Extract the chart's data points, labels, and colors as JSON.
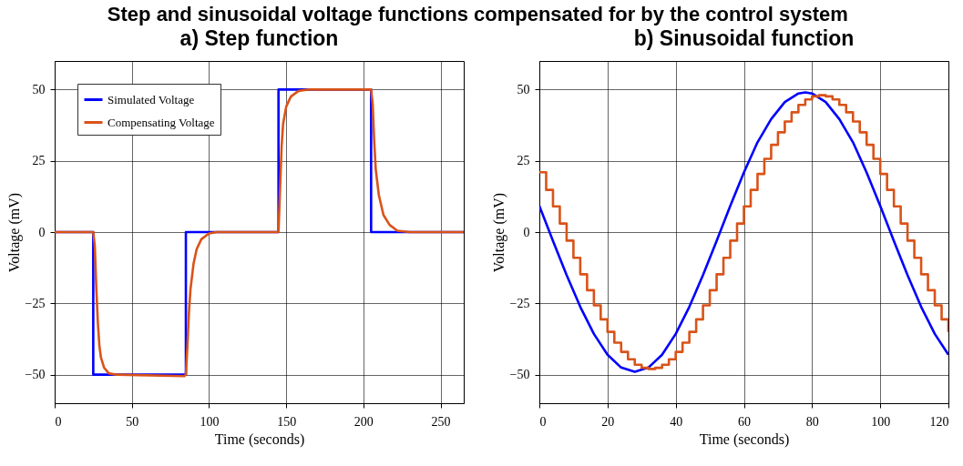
{
  "chart_data": [
    {
      "type": "line",
      "title": "a) Step function",
      "annotations": [
        "Step and sinusoidal voltage functions compensated for by the control system"
      ],
      "xlabel": "Time (seconds)",
      "ylabel": "Voltage (mV)",
      "xlim": [
        0,
        265
      ],
      "ylim": [
        -60,
        60
      ],
      "xticks": [
        0,
        50,
        100,
        150,
        200,
        250
      ],
      "yticks": [
        -50,
        -25,
        0,
        25,
        50
      ],
      "grid": true,
      "legend": "top left",
      "series": [
        {
          "name": "Simulated Voltage",
          "color": "#0000ff",
          "x": [
            0,
            25,
            25,
            85,
            85,
            145,
            145,
            205,
            205,
            265
          ],
          "values": [
            0,
            0,
            -50,
            -50,
            0,
            0,
            50,
            50,
            0,
            0
          ]
        },
        {
          "name": "Compensating Voltage",
          "color": "#d95319",
          "x": [
            0,
            25,
            26,
            27,
            28,
            29,
            30,
            32,
            35,
            40,
            84,
            85,
            86,
            87,
            88,
            90,
            92,
            95,
            100,
            105,
            145,
            146,
            147,
            148,
            150,
            153,
            158,
            165,
            205,
            206,
            207,
            208,
            210,
            213,
            217,
            222,
            230,
            265
          ],
          "values": [
            0,
            0,
            -5,
            -20,
            -32,
            -40,
            -44,
            -47.5,
            -49.5,
            -50,
            -50.5,
            -50,
            -40,
            -28,
            -20,
            -11,
            -6,
            -2.5,
            -0.5,
            0,
            0,
            15,
            30,
            38,
            44,
            47.5,
            49.5,
            50,
            50,
            45,
            32,
            22,
            13,
            6,
            2.5,
            0.5,
            0,
            0
          ]
        }
      ]
    },
    {
      "type": "line",
      "title": "b) Sinusoidal function",
      "xlabel": "Time (seconds)",
      "ylabel": "Voltage (mV)",
      "xlim": [
        0,
        120
      ],
      "ylim": [
        -60,
        60
      ],
      "xticks": [
        0,
        20,
        40,
        60,
        80,
        100,
        120
      ],
      "yticks": [
        -50,
        -25,
        0,
        25,
        50
      ],
      "grid": true,
      "series": [
        {
          "color": "#0000ff",
          "x": [
            0,
            4,
            8,
            12,
            16,
            20,
            24,
            28,
            32,
            36,
            40,
            44,
            48,
            52,
            56,
            60,
            64,
            68,
            72,
            76,
            78,
            80,
            84,
            88,
            92,
            96,
            100,
            104,
            108,
            112,
            116,
            120
          ],
          "values": [
            9.2,
            -3.1,
            -15.1,
            -26.2,
            -35.7,
            -43,
            -47.5,
            -49,
            -47.5,
            -43,
            -35.7,
            -26.2,
            -15.1,
            -3.1,
            9.2,
            20.9,
            31.5,
            39.6,
            45.6,
            48.6,
            49,
            48.6,
            45.6,
            39.6,
            31.5,
            20.9,
            9.2,
            -3.1,
            -15.1,
            -26.2,
            -35.7,
            -43
          ]
        },
        {
          "type": "step",
          "color": "#d95319",
          "x": [
            0,
            2,
            4,
            6,
            8,
            10,
            12,
            14,
            16,
            18,
            20,
            22,
            24,
            26,
            28,
            30,
            32,
            34,
            36,
            38,
            40,
            42,
            44,
            46,
            48,
            50,
            52,
            54,
            56,
            58,
            60,
            62,
            64,
            66,
            68,
            70,
            72,
            74,
            76,
            78,
            80,
            82,
            84,
            86,
            88,
            90,
            92,
            94,
            96,
            98,
            100,
            102,
            104,
            106,
            108,
            110,
            112,
            114,
            116,
            118,
            120
          ],
          "values": [
            21,
            14.8,
            9,
            3,
            -3,
            -9,
            -14.8,
            -20.4,
            -25.7,
            -30.6,
            -35,
            -38.8,
            -42,
            -44.6,
            -46.5,
            -47.6,
            -48,
            -47.6,
            -46.5,
            -44.6,
            -42,
            -38.8,
            -35,
            -30.6,
            -25.7,
            -20.4,
            -14.8,
            -9,
            -3,
            3,
            9,
            14.8,
            20.4,
            25.7,
            30.6,
            35,
            38.8,
            42,
            44.6,
            46.5,
            47.6,
            48,
            47.6,
            46.5,
            44.6,
            42,
            38.8,
            35,
            30.6,
            25.7,
            20.4,
            14.8,
            9,
            3,
            -3,
            -9,
            -14.8,
            -20.4,
            -25.7,
            -30.6,
            -35
          ]
        }
      ]
    }
  ]
}
